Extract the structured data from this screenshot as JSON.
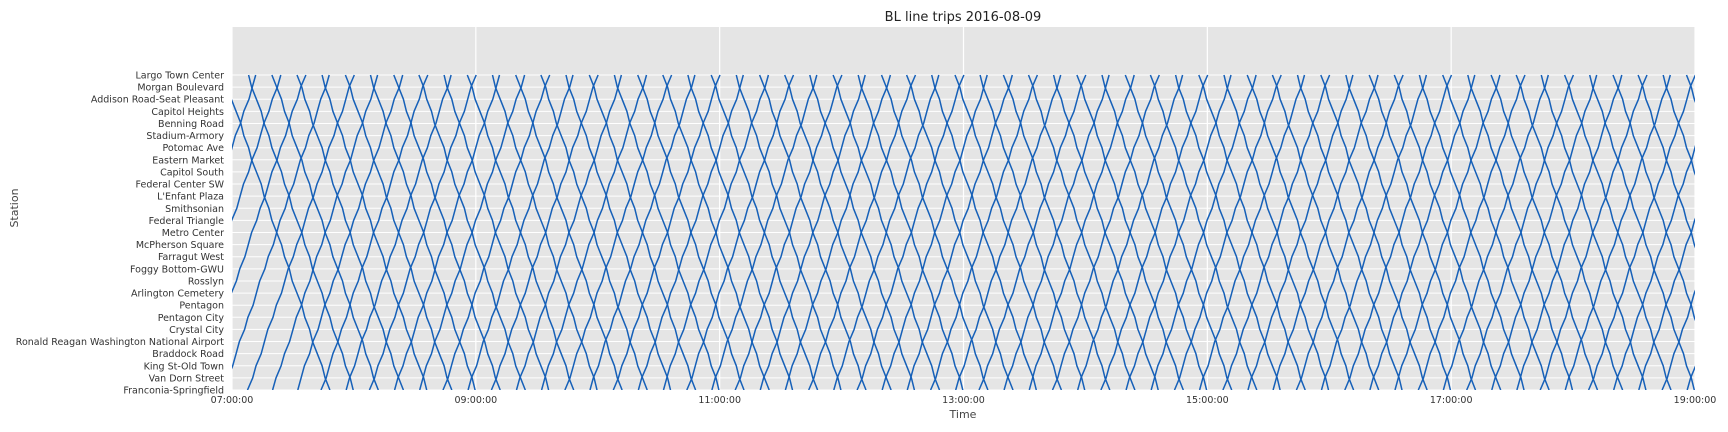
{
  "chart_data": {
    "type": "line",
    "title": "BL line trips 2016-08-09",
    "xlabel": "Time",
    "ylabel": "Station",
    "x_ticks": [
      "07:00:00",
      "09:00:00",
      "11:00:00",
      "13:00:00",
      "15:00:00",
      "17:00:00",
      "19:00:00"
    ],
    "xlim": [
      "07:00:00",
      "19:00:00"
    ],
    "stations": [
      "Largo Town Center",
      "Morgan Boulevard",
      "Addison Road-Seat Pleasant",
      "Capitol Heights",
      "Benning Road",
      "Stadium-Armory",
      "Potomac Ave",
      "Eastern Market",
      "Capitol South",
      "Federal Center SW",
      "L'Enfant Plaza",
      "Smithsonian",
      "Federal Triangle",
      "Metro Center",
      "McPherson Square",
      "Farragut West",
      "Foggy Bottom-GWU",
      "Rosslyn",
      "Arlington Cemetery",
      "Pentagon",
      "Pentagon City",
      "Crystal City",
      "Ronald Reagan Washington National Airport",
      "Braddock Road",
      "King St-Old Town",
      "Van Dorn Street",
      "Franconia-Springfield"
    ],
    "grid": true,
    "line_color": "#1660b8",
    "background_color": "#e5e5e5",
    "trips": {
      "westbound_departures_from_largo": [
        "06:56",
        "07:08",
        "07:20",
        "07:32",
        "07:44",
        "07:56",
        "08:08",
        "08:20",
        "08:32",
        "08:44",
        "08:56",
        "09:08",
        "09:20",
        "09:32",
        "09:44",
        "09:56",
        "10:08",
        "10:20",
        "10:32",
        "10:44",
        "10:56",
        "11:08",
        "11:20",
        "11:32",
        "11:44",
        "11:56",
        "12:08",
        "12:20",
        "12:32",
        "12:44",
        "12:56",
        "13:08",
        "13:20",
        "13:32",
        "13:44",
        "13:56",
        "14:08",
        "14:20",
        "14:32",
        "14:44",
        "14:56",
        "15:08",
        "15:20",
        "15:32",
        "15:44",
        "15:56",
        "16:08",
        "16:20",
        "16:32",
        "16:44",
        "16:56",
        "17:08",
        "17:20",
        "17:32",
        "17:44",
        "17:56",
        "18:08",
        "18:20",
        "18:32",
        "18:44",
        "18:56"
      ],
      "eastbound_departures_from_franconia": [
        "06:20",
        "06:32",
        "06:44",
        "06:56",
        "07:08",
        "07:20",
        "07:32",
        "07:44",
        "07:56",
        "08:08",
        "08:20",
        "08:32",
        "08:44",
        "08:56",
        "09:08",
        "09:20",
        "09:32",
        "09:44",
        "09:56",
        "10:08",
        "10:20",
        "10:32",
        "10:44",
        "10:56",
        "11:08",
        "11:20",
        "11:32",
        "11:44",
        "11:56",
        "12:08",
        "12:20",
        "12:32",
        "12:44",
        "12:56",
        "13:08",
        "13:20",
        "13:32",
        "13:44",
        "13:56",
        "14:08",
        "14:20",
        "14:32",
        "14:44",
        "14:56",
        "15:08",
        "15:20",
        "15:32",
        "15:44",
        "15:56",
        "16:08",
        "16:20",
        "16:32",
        "16:44",
        "16:56",
        "17:08",
        "17:20",
        "17:32",
        "17:44",
        "17:56",
        "18:08",
        "18:20",
        "18:32",
        "18:44",
        "18:56"
      ],
      "segment_minutes": 2.0
    }
  }
}
